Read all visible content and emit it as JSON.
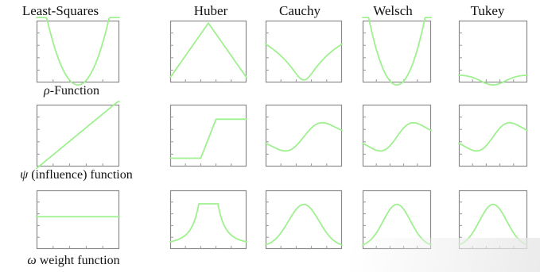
{
  "columns": [
    "Least-Squares",
    "Huber",
    "Cauchy",
    "Welsch",
    "Tukey"
  ],
  "row_labels": [
    {
      "symbol": "ρ",
      "text": "-Function"
    },
    {
      "symbol": "ψ",
      "text": " (influence) function"
    },
    {
      "symbol": "ω",
      "text": " weight function"
    }
  ],
  "curve_color": "#9ff08f",
  "rows": [
    {
      "function": "rho",
      "plots": [
        {
          "estimator": "Least-Squares",
          "shape": "quadratic"
        },
        {
          "estimator": "Huber",
          "shape": "v-shape"
        },
        {
          "estimator": "Cauchy",
          "shape": "log-v-shape"
        },
        {
          "estimator": "Welsch",
          "shape": "u-shape"
        },
        {
          "estimator": "Tukey",
          "shape": "flat-bottom-well"
        }
      ]
    },
    {
      "function": "psi",
      "plots": [
        {
          "estimator": "Least-Squares",
          "shape": "linear"
        },
        {
          "estimator": "Huber",
          "shape": "clipped-linear"
        },
        {
          "estimator": "Cauchy",
          "shape": "redescending"
        },
        {
          "estimator": "Welsch",
          "shape": "redescending"
        },
        {
          "estimator": "Tukey",
          "shape": "redescending"
        }
      ]
    },
    {
      "function": "omega",
      "plots": [
        {
          "estimator": "Least-Squares",
          "shape": "constant"
        },
        {
          "estimator": "Huber",
          "shape": "flat-top-peak"
        },
        {
          "estimator": "Cauchy",
          "shape": "bell"
        },
        {
          "estimator": "Welsch",
          "shape": "bell"
        },
        {
          "estimator": "Tukey",
          "shape": "bell"
        }
      ]
    }
  ]
}
